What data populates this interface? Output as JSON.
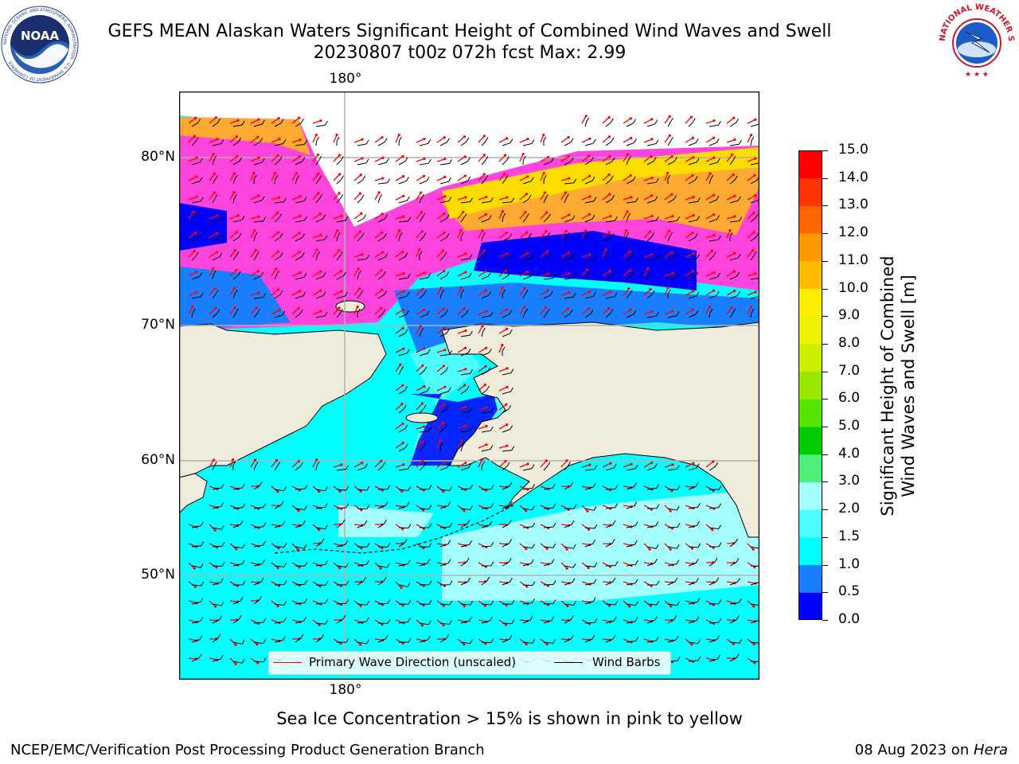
{
  "header": {
    "title_line1": "GEFS MEAN Alaskan Waters Significant Height of Combined Wind Waves and Swell",
    "title_line2": "20230807 t00z 072h fcst   Max: 2.99"
  },
  "logos": {
    "left": {
      "icon": "noaa-logo-icon",
      "text": "NOAA",
      "ring_text": "NATIONAL OCEANIC AND ATMOSPHERIC ADMINISTRATION · U.S. DEPARTMENT OF COMMERCE"
    },
    "right": {
      "icon": "nws-logo-icon",
      "ring_text": "NATIONAL WEATHER SERVICE"
    }
  },
  "map": {
    "lon_labels": {
      "top": "180°",
      "bottom": "180°"
    },
    "lat_labels": [
      "80°N",
      "70°N",
      "60°N",
      "50°N"
    ],
    "colors": {
      "land": "#efecdc",
      "coast": "#000000",
      "grid": "#b0b0b0",
      "wave_arrow": "#ff0000",
      "wind_barb": "#000000"
    },
    "legend": {
      "wave_label": "Primary Wave Direction (unscaled)",
      "barb_label": "Wind Barbs"
    }
  },
  "colorbar": {
    "title": "Significant Height of Combined Wind Waves and Swell [m]",
    "title_line1": "Significant Height of Combined",
    "title_line2": "Wind Waves and Swell [m]",
    "ticks": [
      "0.0",
      "0.5",
      "1.0",
      "1.5",
      "2.0",
      "3.0",
      "4.0",
      "5.0",
      "6.0",
      "7.0",
      "8.0",
      "9.0",
      "10.0",
      "11.0",
      "12.0",
      "13.0",
      "14.0",
      "15.0"
    ],
    "colors": [
      "#0000ff",
      "#1a7fff",
      "#00ffff",
      "#4dffff",
      "#a6ffff",
      "#4df07a",
      "#00cc00",
      "#55e600",
      "#99e600",
      "#ccee00",
      "#eef200",
      "#ffee00",
      "#ffbb00",
      "#ff9900",
      "#ff6600",
      "#ff3300",
      "#ff0000"
    ]
  },
  "footnote": "Sea Ice Concentration > 15% is shown in pink to yellow",
  "footer": {
    "left": "NCEP/EMC/Verification Post Processing Product Generation Branch",
    "right_prefix": "08 Aug 2023 on ",
    "right_host": "Hera"
  }
}
